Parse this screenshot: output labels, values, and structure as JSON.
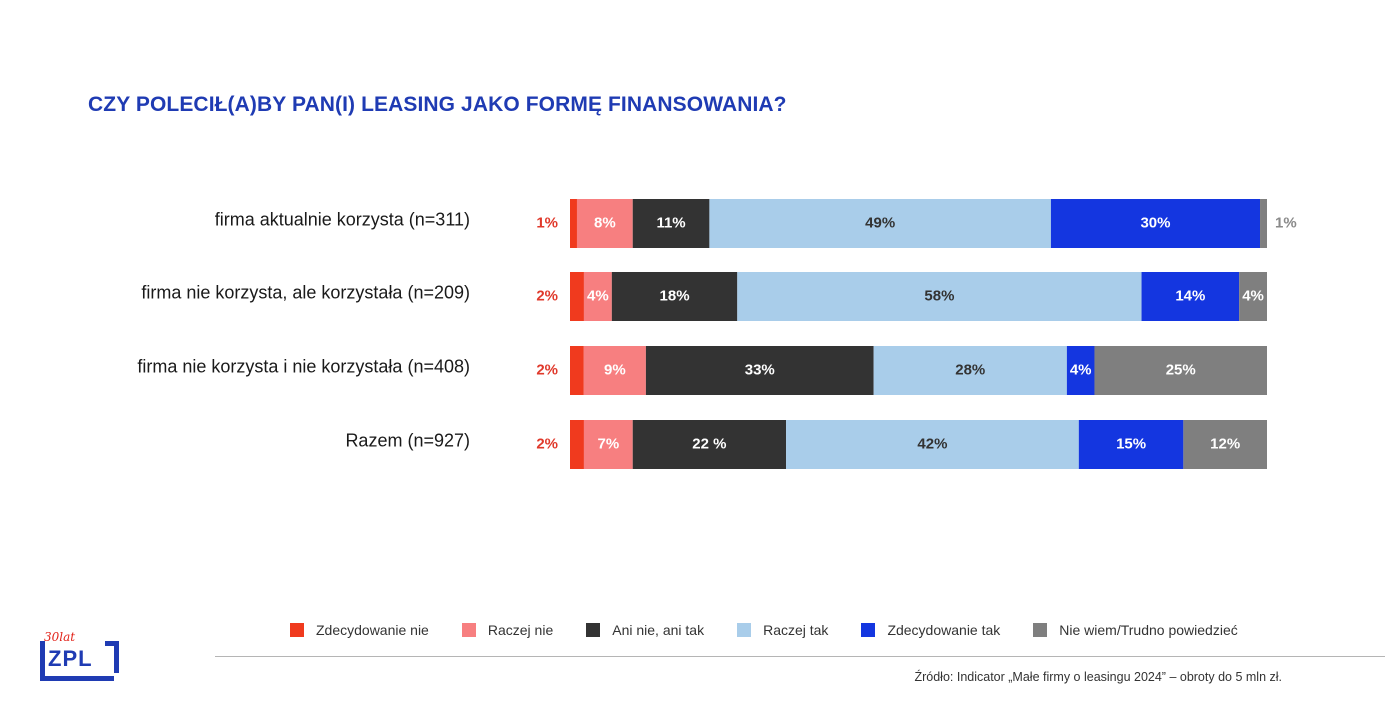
{
  "chart_data": {
    "type": "bar",
    "orientation": "horizontal",
    "stacked": true,
    "title": "CZY POLECIŁ(A)BY PAN(I) LEASING JAKO FORMĘ FINANSOWANIA?",
    "categories": [
      "firma aktualnie korzysta (n=311)",
      "firma nie korzysta, ale korzystała (n=209)",
      "firma nie korzysta i nie korzystała (n=408)",
      "Razem (n=927)"
    ],
    "series": [
      {
        "name": "Zdecydowanie nie",
        "color": "#f03a1e",
        "values": [
          1,
          2,
          2,
          2
        ],
        "labels": [
          "1%",
          "2%",
          "2%",
          "2%"
        ],
        "label_color": "#e0392b"
      },
      {
        "name": "Raczej nie",
        "color": "#f77f80",
        "values": [
          8,
          4,
          9,
          7
        ],
        "labels": [
          "8%",
          "4%",
          "9%",
          "7%"
        ],
        "label_color": "#ffffff"
      },
      {
        "name": "Ani nie, ani tak",
        "color": "#333333",
        "values": [
          11,
          18,
          33,
          22
        ],
        "labels": [
          "11%",
          "18%",
          "33%",
          "22 %"
        ],
        "label_color": "#ffffff"
      },
      {
        "name": "Raczej tak",
        "color": "#a9cdea",
        "values": [
          49,
          58,
          28,
          42
        ],
        "labels": [
          "49%",
          "58%",
          "28%",
          "42%"
        ],
        "label_color": "#333333"
      },
      {
        "name": "Zdecydowanie tak",
        "color": "#1436e0",
        "values": [
          30,
          14,
          4,
          15
        ],
        "labels": [
          "30%",
          "14%",
          "4%",
          "15%"
        ],
        "label_color": "#ffffff"
      },
      {
        "name": "Nie wiem/Trudno powiedzieć",
        "color": "#7f7f7f",
        "values": [
          1,
          4,
          25,
          12
        ],
        "labels": [
          "1%",
          "4%",
          "25%",
          "12%"
        ],
        "label_color": "#ffffff",
        "label_outside_first_row": true,
        "outside_label_color": "#8a8a8a"
      }
    ],
    "legend_position": "bottom",
    "grid": false
  },
  "source": "Źródło: Indicator „Małe firmy o leasingu 2024” – obroty do 5 mln zł.",
  "logo": {
    "top_text": "30lat",
    "main_text": "ZPL"
  }
}
